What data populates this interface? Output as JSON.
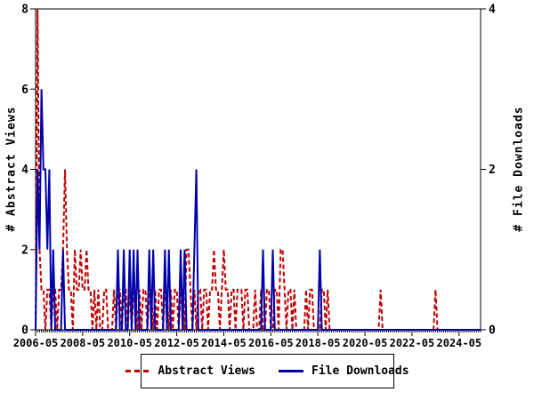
{
  "chart_data": {
    "type": "line",
    "title": "",
    "x_start": "2006-05",
    "x_interval": "monthly",
    "n_points": 228,
    "x_tick_labels": [
      "2006-05",
      "2008-05",
      "2010-05",
      "2012-05",
      "2014-05",
      "2016-05",
      "2018-05",
      "2020-05",
      "2022-05",
      "2024-05"
    ],
    "x_tick_month_indices": [
      0,
      24,
      48,
      72,
      96,
      120,
      144,
      168,
      192,
      216
    ],
    "ylabel_left": "# Abstract Views",
    "ylabel_right": "# File Downloads",
    "y_left": {
      "min": 0,
      "max": 8,
      "ticks": [
        0,
        2,
        4,
        6,
        8
      ]
    },
    "y_right": {
      "min": 0,
      "max": 4,
      "ticks": [
        0,
        2,
        4
      ]
    },
    "grid": "off",
    "legend": {
      "position": "bottom-center",
      "abstract_views": "Abstract Views",
      "file_downloads": "File Downloads"
    },
    "colors": {
      "abstract_views": "#c00000",
      "file_downloads": "#0000a8",
      "axis": "#000000",
      "background": "#ffffff"
    },
    "series": [
      {
        "name": "Abstract Views",
        "axis": "left",
        "style": "dashed",
        "values": [
          0,
          8,
          2,
          1,
          1,
          0,
          1,
          1,
          0,
          1,
          1,
          0,
          1,
          1,
          2,
          4,
          2,
          1,
          1,
          0,
          2,
          1,
          1,
          2,
          1,
          1,
          2,
          1,
          1,
          0,
          1,
          0,
          1,
          0,
          0,
          1,
          1,
          0,
          0,
          0,
          1,
          0,
          1,
          1,
          0,
          1,
          1,
          0,
          1,
          0,
          1,
          1,
          0,
          1,
          0,
          1,
          1,
          0,
          1,
          1,
          0,
          1,
          0,
          1,
          1,
          0,
          1,
          1,
          0,
          1,
          0,
          1,
          1,
          0,
          1,
          1,
          0,
          2,
          2,
          1,
          0,
          1,
          0,
          1,
          1,
          0,
          1,
          1,
          0,
          1,
          1,
          2,
          1,
          1,
          0,
          1,
          2,
          1,
          1,
          0,
          1,
          1,
          0,
          1,
          1,
          1,
          0,
          1,
          1,
          0,
          0,
          0,
          1,
          0,
          0,
          1,
          0,
          0,
          1,
          1,
          0,
          0,
          1,
          1,
          0,
          2,
          2,
          1,
          0,
          1,
          1,
          0,
          1,
          0,
          0,
          0,
          0,
          0,
          1,
          0,
          1,
          1,
          0,
          0,
          0,
          0,
          1,
          1,
          0,
          1,
          0,
          0,
          0,
          0,
          0,
          0,
          0,
          0,
          0,
          0,
          0,
          0,
          0,
          0,
          0,
          0,
          0,
          0,
          0,
          0,
          0,
          0,
          0,
          0,
          0,
          0,
          1,
          0,
          0,
          0,
          0,
          0,
          0,
          0,
          0,
          0,
          0,
          0,
          0,
          0,
          0,
          0,
          0,
          0,
          0,
          0,
          0,
          0,
          0,
          0,
          0,
          0,
          0,
          0,
          1,
          0,
          0,
          0,
          0,
          0,
          0,
          0,
          0,
          0,
          0,
          0,
          0,
          0,
          0,
          0,
          0,
          0,
          0,
          0,
          0,
          0,
          0,
          0
        ]
      },
      {
        "name": "File Downloads",
        "axis": "right",
        "style": "solid",
        "values": [
          0,
          2,
          1,
          3,
          2,
          2,
          1,
          2,
          0,
          1,
          0,
          0,
          0,
          0,
          1,
          0,
          0,
          0,
          0,
          0,
          0,
          0,
          0,
          0,
          0,
          0,
          0,
          0,
          0,
          0,
          0,
          0,
          0,
          0,
          0,
          0,
          0,
          0,
          0,
          0,
          0,
          0,
          1,
          0,
          0,
          1,
          0,
          0,
          1,
          0,
          1,
          0,
          1,
          0,
          0,
          0,
          0,
          0,
          1,
          0,
          1,
          0,
          0,
          0,
          0,
          0,
          1,
          0,
          1,
          0,
          0,
          0,
          0,
          0,
          1,
          0,
          1,
          0,
          0,
          0,
          0,
          1,
          2,
          0,
          0,
          0,
          0,
          0,
          0,
          0,
          0,
          0,
          0,
          0,
          0,
          0,
          0,
          0,
          0,
          0,
          0,
          0,
          0,
          0,
          0,
          0,
          0,
          0,
          0,
          0,
          0,
          0,
          0,
          0,
          0,
          0,
          1,
          0,
          0,
          0,
          0,
          1,
          0,
          0,
          0,
          0,
          0,
          0,
          0,
          0,
          0,
          0,
          0,
          0,
          0,
          0,
          0,
          0,
          0,
          0,
          0,
          0,
          0,
          0,
          0,
          1,
          0,
          0,
          0,
          0,
          0,
          0,
          0,
          0,
          0,
          0,
          0,
          0,
          0,
          0,
          0,
          0,
          0,
          0,
          0,
          0,
          0,
          0,
          0,
          0,
          0,
          0,
          0,
          0,
          0,
          0,
          0,
          0,
          0,
          0,
          0,
          0,
          0,
          0,
          0,
          0,
          0,
          0,
          0,
          0,
          0,
          0,
          0,
          0,
          0,
          0,
          0,
          0,
          0,
          0,
          0,
          0,
          0,
          0,
          0,
          0,
          0,
          0,
          0,
          0,
          0,
          0,
          0,
          0,
          0,
          0,
          0,
          0,
          0,
          0,
          0,
          0,
          0,
          0,
          0,
          0,
          0,
          0
        ]
      }
    ]
  }
}
